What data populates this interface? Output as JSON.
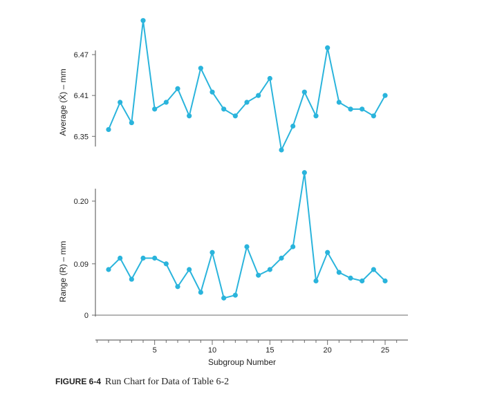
{
  "caption": {
    "label": "FIGURE 6-4",
    "text": "Run Chart for Data of Table 6-2"
  },
  "colors": {
    "series": "#2ab4dc",
    "axis": "#6a6a6a"
  },
  "chart_data": [
    {
      "type": "line",
      "ylabel": "Average (X̄) – mm",
      "yticks": [
        "6.47",
        "6.41",
        "6.35"
      ],
      "ylim": [
        6.33,
        6.54
      ],
      "x": [
        1,
        2,
        3,
        4,
        5,
        6,
        7,
        8,
        9,
        10,
        11,
        12,
        13,
        14,
        15,
        16,
        17,
        18,
        19,
        20,
        21,
        22,
        23,
        24,
        25
      ],
      "series": [
        {
          "values": [
            6.36,
            6.4,
            6.37,
            6.52,
            6.39,
            6.4,
            6.42,
            6.38,
            6.45,
            6.415,
            6.39,
            6.38,
            6.4,
            6.41,
            6.435,
            6.33,
            6.365,
            6.415,
            6.38,
            6.48,
            6.4,
            6.39,
            6.39,
            6.38,
            6.41
          ]
        }
      ]
    },
    {
      "type": "line",
      "ylabel": "Range (R) – mm",
      "yticks": [
        "0.20",
        "0.09",
        "0"
      ],
      "ylim": [
        0,
        0.2
      ],
      "x": [
        1,
        2,
        3,
        4,
        5,
        6,
        7,
        8,
        9,
        10,
        11,
        12,
        13,
        14,
        15,
        16,
        17,
        18,
        19,
        20,
        21,
        22,
        23,
        24,
        25
      ],
      "xlabel": "Subgroup Number",
      "xticks": [
        "5",
        "10",
        "15",
        "20",
        "25"
      ],
      "series": [
        {
          "values": [
            0.08,
            0.1,
            0.063,
            0.1,
            0.1,
            0.09,
            0.05,
            0.08,
            0.04,
            0.11,
            0.03,
            0.035,
            0.12,
            0.07,
            0.08,
            0.1,
            0.12,
            0.25,
            0.06,
            0.11,
            0.075,
            0.065,
            0.06,
            0.08,
            0.06
          ]
        }
      ]
    }
  ]
}
